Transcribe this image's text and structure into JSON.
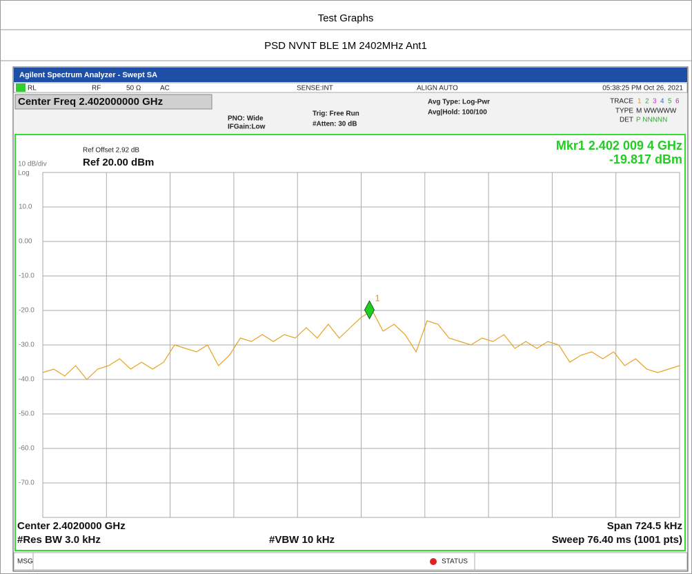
{
  "report": {
    "heading": "Test Graphs",
    "subheading": "PSD NVNT BLE 1M 2402MHz Ant1"
  },
  "analyzer": {
    "window_title": "Agilent Spectrum Analyzer - Swept SA",
    "status_bar": [
      "RL",
      "RF",
      "50 Ω",
      "AC",
      "SENSE:INT",
      "ALIGN AUTO",
      "05:38:25 PM Oct 26, 2021"
    ],
    "center_freq": "Center Freq 2.402000000 GHz",
    "pno": "PNO: Wide",
    "ifgain": "IFGain:Low",
    "trig": "Trig: Free Run",
    "atten": "#Atten: 30 dB",
    "avg_type": "Avg Type: Log-Pwr",
    "avg_hold": "Avg|Hold: 100/100",
    "trace_label": "TRACE",
    "trace_nums": [
      "1",
      "2",
      "3",
      "4",
      "5",
      "6"
    ],
    "type_label": "TYPE",
    "type_value": "M WWWWW",
    "det_label": "DET",
    "det_value": "P NNNNN",
    "ref_offset": "Ref Offset 2.92 dB",
    "ref_level": "Ref 20.00 dBm",
    "scale": "10 dB/div",
    "scale_type": "Log",
    "marker_freq": "Mkr1 2.402 009 4 GHz",
    "marker_level": "-19.817 dBm",
    "center": "Center 2.4020000 GHz",
    "res_bw": "#Res BW 3.0 kHz",
    "vbw": "#VBW 10 kHz",
    "span": "Span 724.5 kHz",
    "sweep": "Sweep  76.40 ms (1001 pts)",
    "msg": "MSG",
    "status": "STATUS"
  },
  "chart_data": {
    "type": "line",
    "x": [
      2.4016375,
      2.40165,
      2.4016625,
      2.401675,
      2.4016875,
      2.4017,
      2.4017125,
      2.401725,
      2.4017375,
      2.40175,
      2.4017625,
      2.401775,
      2.4017875,
      2.4018,
      2.4018125,
      2.401825,
      2.4018375,
      2.40185,
      2.4018625,
      2.401875,
      2.4018875,
      2.4019,
      2.4019125,
      2.401925,
      2.4019375,
      2.40195,
      2.4019625,
      2.401975,
      2.4019875,
      2.402,
      2.4020125,
      2.402025,
      2.4020375,
      2.40205,
      2.4020625,
      2.402075,
      2.4020875,
      2.4021,
      2.4021125,
      2.402125,
      2.4021375,
      2.40215,
      2.4021625,
      2.402175,
      2.4021875,
      2.4022,
      2.4022125,
      2.402225,
      2.4022375,
      2.40225,
      2.4022625,
      2.402275,
      2.4022875,
      2.4023,
      2.4023125,
      2.402325,
      2.4023375,
      2.40235,
      2.4023625
    ],
    "series": [
      {
        "name": "Trace 1",
        "color": "#e8a020",
        "values": [
          -38,
          -37,
          -39,
          -36,
          -40,
          -37,
          -36,
          -34,
          -37,
          -35,
          -37,
          -35,
          -30,
          -31,
          -32,
          -30,
          -36,
          -33,
          -28,
          -29,
          -27,
          -29,
          -27,
          -28,
          -25,
          -28,
          -24,
          -28,
          -25,
          -22,
          -20,
          -26,
          -24,
          -27,
          -32,
          -23,
          -24,
          -28,
          -29,
          -30,
          -28,
          -29,
          -27,
          -31,
          -29,
          -31,
          -29,
          -30,
          -35,
          -33,
          -32,
          -34,
          -32,
          -36,
          -34,
          -37,
          -38,
          -37,
          -36
        ]
      }
    ],
    "marker": {
      "x": 2.4020094,
      "value": -19.817,
      "label": "1",
      "color": "#22cc22"
    },
    "xlim": [
      2.4016375,
      2.4023625
    ],
    "xticks": [
      2.4016375,
      2.40171,
      2.4017825,
      2.401855,
      2.4019275,
      2.402,
      2.4020725,
      2.402145,
      2.4022175,
      2.40229,
      2.4023625
    ],
    "ylim": [
      -80,
      20
    ],
    "yticks": [
      {
        "value": 10,
        "label": "10.0"
      },
      {
        "value": 0,
        "label": "0.00"
      },
      {
        "value": -10,
        "label": "-10.0"
      },
      {
        "value": -20,
        "label": "-20.0"
      },
      {
        "value": -30,
        "label": "-30.0"
      },
      {
        "value": -40,
        "label": "-40.0"
      },
      {
        "value": -50,
        "label": "-50.0"
      },
      {
        "value": -60,
        "label": "-60.0"
      },
      {
        "value": -70,
        "label": "-70.0"
      }
    ],
    "grid": true
  }
}
